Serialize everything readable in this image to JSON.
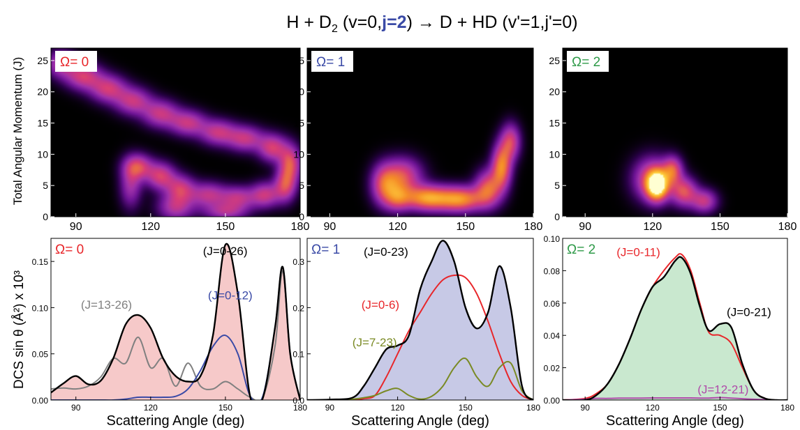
{
  "figure": {
    "title_parts": [
      "H + D",
      "2",
      " (v=0,",
      "j=2",
      ")  → D + HD (v'=1,j'=0)"
    ],
    "ylabel_top": "Total Angular Momentum (J)",
    "ylabel_bottom": "DCS sin θ (Å²) x 10³",
    "xlabel": "Scattering Angle (deg)"
  },
  "chart_data": [
    {
      "type": "heatmap",
      "panel": "top-omega0",
      "label": "Ω= 0",
      "label_color": "#e8262a",
      "xlim": [
        80,
        180
      ],
      "ylim": [
        0,
        27
      ],
      "xticks": [
        90,
        120,
        150,
        180
      ],
      "yticks": [
        0,
        5,
        10,
        15,
        20,
        25
      ],
      "xlabel": "",
      "ylabel": "Total Angular Momentum (J)",
      "blobs": [
        {
          "x": 84,
          "y": 24.5,
          "sx": 4,
          "sy": 1.5,
          "v": 0.42
        },
        {
          "x": 93,
          "y": 22.5,
          "sx": 5,
          "sy": 1.5,
          "v": 0.5
        },
        {
          "x": 103,
          "y": 20.5,
          "sx": 5,
          "sy": 1.5,
          "v": 0.48
        },
        {
          "x": 113,
          "y": 18.5,
          "sx": 5,
          "sy": 1.5,
          "v": 0.45
        },
        {
          "x": 124,
          "y": 16.5,
          "sx": 5,
          "sy": 1.5,
          "v": 0.45
        },
        {
          "x": 135,
          "y": 15,
          "sx": 5,
          "sy": 1.4,
          "v": 0.45
        },
        {
          "x": 147,
          "y": 13.5,
          "sx": 5,
          "sy": 1.4,
          "v": 0.45
        },
        {
          "x": 158,
          "y": 12.5,
          "sx": 5,
          "sy": 1.4,
          "v": 0.45
        },
        {
          "x": 169,
          "y": 11,
          "sx": 4,
          "sy": 1.5,
          "v": 0.5
        },
        {
          "x": 176,
          "y": 8.5,
          "sx": 3,
          "sy": 2,
          "v": 0.55
        },
        {
          "x": 174,
          "y": 5,
          "sx": 3,
          "sy": 1.8,
          "v": 0.5
        },
        {
          "x": 166,
          "y": 3.5,
          "sx": 4,
          "sy": 1.4,
          "v": 0.45
        },
        {
          "x": 155,
          "y": 3,
          "sx": 5,
          "sy": 1.3,
          "v": 0.42
        },
        {
          "x": 143,
          "y": 3.5,
          "sx": 5,
          "sy": 1.4,
          "v": 0.42
        },
        {
          "x": 132,
          "y": 4.5,
          "sx": 4,
          "sy": 1.5,
          "v": 0.45
        },
        {
          "x": 124,
          "y": 6.5,
          "sx": 4,
          "sy": 1.5,
          "v": 0.5
        },
        {
          "x": 115,
          "y": 8,
          "sx": 4,
          "sy": 1.4,
          "v": 0.5
        },
        {
          "x": 112,
          "y": 5,
          "sx": 3,
          "sy": 2.5,
          "v": 0.35
        },
        {
          "x": 130,
          "y": 1.5,
          "sx": 5,
          "sy": 1.5,
          "v": 0.4
        },
        {
          "x": 150,
          "y": 0.8,
          "sx": 6,
          "sy": 1,
          "v": 0.35
        }
      ]
    },
    {
      "type": "heatmap",
      "panel": "top-omega1",
      "label": "Ω= 1",
      "label_color": "#3a4aa6",
      "xlim": [
        80,
        180
      ],
      "ylim": [
        0,
        27
      ],
      "xticks": [
        90,
        120,
        150,
        180
      ],
      "yticks": [
        0,
        5,
        10,
        15,
        20,
        25
      ],
      "xlabel": "",
      "ylabel": "",
      "blobs": [
        {
          "x": 114,
          "y": 5,
          "sx": 4,
          "sy": 2.2,
          "v": 0.5
        },
        {
          "x": 122,
          "y": 6.5,
          "sx": 6,
          "sy": 2,
          "v": 0.55
        },
        {
          "x": 133,
          "y": 3,
          "sx": 7,
          "sy": 1.4,
          "v": 0.75
        },
        {
          "x": 148,
          "y": 2.8,
          "sx": 7,
          "sy": 1.4,
          "v": 0.72
        },
        {
          "x": 160,
          "y": 4.5,
          "sx": 4,
          "sy": 2,
          "v": 0.58
        },
        {
          "x": 166,
          "y": 8,
          "sx": 3,
          "sy": 2.5,
          "v": 0.7
        },
        {
          "x": 170,
          "y": 12,
          "sx": 3,
          "sy": 2,
          "v": 0.5
        },
        {
          "x": 120,
          "y": 3,
          "sx": 4,
          "sy": 1.5,
          "v": 0.45
        }
      ]
    },
    {
      "type": "heatmap",
      "panel": "top-omega2",
      "label": "Ω= 2",
      "label_color": "#2e9a48",
      "xlim": [
        80,
        180
      ],
      "ylim": [
        0,
        27
      ],
      "xticks": [
        90,
        120,
        150,
        180
      ],
      "yticks": [
        0,
        5,
        10,
        15,
        20,
        25
      ],
      "xlabel": "",
      "ylabel": "",
      "blobs": [
        {
          "x": 122,
          "y": 5,
          "sx": 3.2,
          "sy": 1.6,
          "v": 1.0
        },
        {
          "x": 120,
          "y": 6,
          "sx": 6,
          "sy": 2.4,
          "v": 0.55
        },
        {
          "x": 129,
          "y": 7.5,
          "sx": 3,
          "sy": 1.5,
          "v": 0.5
        },
        {
          "x": 134,
          "y": 4,
          "sx": 4,
          "sy": 1.6,
          "v": 0.55
        },
        {
          "x": 143,
          "y": 2.5,
          "sx": 4,
          "sy": 1.3,
          "v": 0.45
        }
      ]
    },
    {
      "type": "line",
      "panel": "bottom-omega0",
      "label": "Ω= 0",
      "label_color": "#e8262a",
      "xlim": [
        80,
        180
      ],
      "ylim": [
        0,
        0.175
      ],
      "xticks": [
        90,
        120,
        150,
        180
      ],
      "yticks": [
        0.0,
        0.05,
        0.1,
        0.15
      ],
      "ytick_labels": [
        "0.00",
        "0.05",
        "0.10",
        "0.15"
      ],
      "xlabel": "Scattering Angle (deg)",
      "ylabel": "DCS sin θ (Å²) x 10³",
      "x": [
        80,
        85,
        90,
        95,
        100,
        105,
        110,
        115,
        120,
        125,
        130,
        135,
        140,
        145,
        150,
        155,
        160,
        165,
        170,
        173,
        176,
        180
      ],
      "series": [
        {
          "name": "(J=0-26)",
          "color": "#000000",
          "fill": "#f6c9c9",
          "width": 2.4,
          "values": [
            0.008,
            0.018,
            0.026,
            0.017,
            0.021,
            0.045,
            0.082,
            0.092,
            0.078,
            0.045,
            0.026,
            0.02,
            0.026,
            0.07,
            0.168,
            0.115,
            0.003,
            0.002,
            0.08,
            0.144,
            0.05,
            0.0
          ]
        },
        {
          "name": "(J=13-26)",
          "color": "#808080",
          "width": 2,
          "values": [
            0.012,
            0.013,
            0.012,
            0.015,
            0.025,
            0.045,
            0.04,
            0.068,
            0.035,
            0.045,
            0.015,
            0.04,
            0.015,
            0.012,
            0.02,
            0.012,
            0.003,
            0.003,
            0.06,
            0.14,
            0.05,
            0.0
          ]
        },
        {
          "name": "(J=0-12)",
          "color": "#3a4aa6",
          "width": 2,
          "values": [
            0.0,
            0.0,
            0.0,
            0.0,
            0.0,
            0.0,
            0.001,
            0.003,
            0.003,
            0.003,
            0.004,
            0.012,
            0.032,
            0.058,
            0.07,
            0.05,
            0.004,
            0.004,
            0.08,
            0.144,
            0.05,
            0.0
          ]
        }
      ],
      "annotations": [
        {
          "text": "(J=0-26)",
          "color": "#000000",
          "x": 141,
          "y": 0.157
        },
        {
          "text": "(J=13-26)",
          "color": "#808080",
          "x": 92,
          "y": 0.099
        },
        {
          "text": "(J=0-12)",
          "color": "#3a4aa6",
          "x": 143,
          "y": 0.109
        }
      ]
    },
    {
      "type": "line",
      "panel": "bottom-omega1",
      "label": "Ω= 1",
      "label_color": "#3a4aa6",
      "xlim": [
        80,
        180
      ],
      "ylim": [
        0,
        0.35
      ],
      "xticks": [
        90,
        120,
        150,
        180
      ],
      "yticks": [
        0.0,
        0.1,
        0.2,
        0.3
      ],
      "ytick_labels": [
        "0.0",
        "0.1",
        "0.2",
        "0.3"
      ],
      "xlabel": "Scattering Angle (deg)",
      "ylabel": "",
      "x": [
        80,
        90,
        100,
        105,
        110,
        115,
        120,
        125,
        130,
        135,
        140,
        145,
        150,
        155,
        160,
        165,
        170,
        175,
        180
      ],
      "series": [
        {
          "name": "(J=0-23)",
          "color": "#000000",
          "fill": "#c7c9e6",
          "width": 2.4,
          "values": [
            0.0,
            0.001,
            0.005,
            0.03,
            0.07,
            0.11,
            0.118,
            0.14,
            0.24,
            0.3,
            0.345,
            0.3,
            0.2,
            0.155,
            0.19,
            0.29,
            0.2,
            0.03,
            0.0
          ]
        },
        {
          "name": "(J=0-6)",
          "color": "#e8262a",
          "width": 2,
          "values": [
            0.0,
            0.0,
            0.001,
            0.003,
            0.01,
            0.05,
            0.1,
            0.15,
            0.19,
            0.23,
            0.26,
            0.27,
            0.265,
            0.23,
            0.17,
            0.1,
            0.04,
            0.01,
            0.0
          ]
        },
        {
          "name": "(J=7-23)",
          "color": "#7a8a24",
          "width": 2,
          "values": [
            0.0,
            0.0,
            0.002,
            0.005,
            0.01,
            0.02,
            0.025,
            0.01,
            0.002,
            0.008,
            0.03,
            0.07,
            0.09,
            0.05,
            0.03,
            0.07,
            0.08,
            0.02,
            0.0
          ]
        }
      ],
      "annotations": [
        {
          "text": "(J=0-23)",
          "color": "#000000",
          "x": 105,
          "y": 0.312
        },
        {
          "text": "(J=0-6)",
          "color": "#e8262a",
          "x": 104,
          "y": 0.198
        },
        {
          "text": "(J=7-23)",
          "color": "#7a8a24",
          "x": 100,
          "y": 0.116
        }
      ]
    },
    {
      "type": "line",
      "panel": "bottom-omega2",
      "label": "Ω= 2",
      "label_color": "#2e9a48",
      "xlim": [
        80,
        180
      ],
      "ylim": [
        0,
        0.1
      ],
      "xticks": [
        90,
        120,
        150,
        180
      ],
      "yticks": [
        0.0,
        0.02,
        0.04,
        0.06,
        0.08,
        0.1
      ],
      "ytick_labels": [
        "0.00",
        "0.02",
        "0.04",
        "0.06",
        "0.08",
        "0.10"
      ],
      "xlabel": "Scattering Angle (deg)",
      "ylabel": "",
      "x": [
        80,
        90,
        95,
        100,
        105,
        110,
        115,
        120,
        125,
        130,
        133,
        137,
        141,
        145,
        150,
        155,
        160,
        165,
        170,
        175,
        180
      ],
      "series": [
        {
          "name": "(J=0-21)",
          "color": "#000000",
          "fill": "#c9e8cf",
          "width": 2.4,
          "values": [
            0.0,
            0.0,
            0.003,
            0.01,
            0.022,
            0.038,
            0.056,
            0.07,
            0.076,
            0.086,
            0.088,
            0.078,
            0.058,
            0.043,
            0.047,
            0.045,
            0.022,
            0.006,
            0.001,
            0.0,
            0.0
          ]
        },
        {
          "name": "(J=0-11)",
          "color": "#e8262a",
          "width": 2,
          "values": [
            0.0,
            0.001,
            0.004,
            0.01,
            0.022,
            0.038,
            0.056,
            0.07,
            0.08,
            0.088,
            0.09,
            0.08,
            0.06,
            0.042,
            0.04,
            0.035,
            0.02,
            0.006,
            0.001,
            0.0,
            0.0
          ]
        },
        {
          "name": "(J=12-21)",
          "color": "#b04aaa",
          "width": 2,
          "values": [
            0.0,
            0.0005,
            0.001,
            0.001,
            0.0012,
            0.0012,
            0.0012,
            0.0013,
            0.0013,
            0.0013,
            0.0013,
            0.0013,
            0.0012,
            0.0012,
            0.0015,
            0.0012,
            0.0008,
            0.0005,
            0.0003,
            0.0,
            0.0
          ]
        }
      ],
      "annotations": [
        {
          "text": "(J=0-11)",
          "color": "#e8262a",
          "x": 104,
          "y": 0.089
        },
        {
          "text": "(J=0-21)",
          "color": "#000000",
          "x": 153,
          "y": 0.052
        },
        {
          "text": "(J=12-21)",
          "color": "#b04aaa",
          "x": 140,
          "y": 0.004
        }
      ]
    }
  ]
}
